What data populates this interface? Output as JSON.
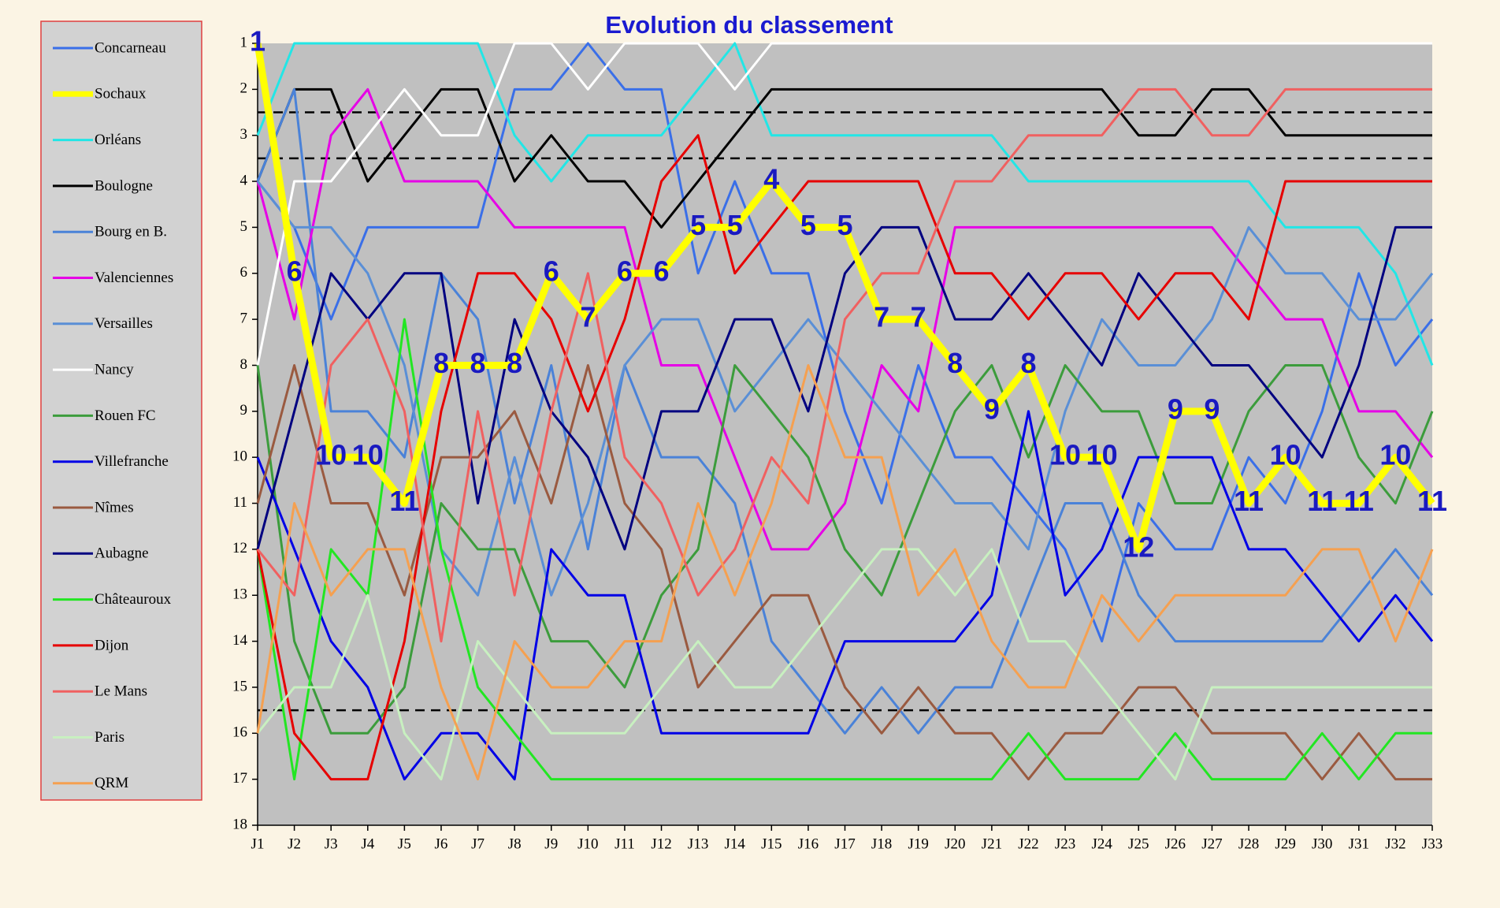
{
  "chart_data": {
    "type": "line",
    "title": "Evolution du classement",
    "categories": [
      "J1",
      "J2",
      "J3",
      "J4",
      "J5",
      "J6",
      "J7",
      "J8",
      "J9",
      "J10",
      "J11",
      "J12",
      "J13",
      "J14",
      "J15",
      "J16",
      "J17",
      "J18",
      "J19",
      "J20",
      "J21",
      "J22",
      "J23",
      "J24",
      "J25",
      "J26",
      "J27",
      "J28",
      "J29",
      "J30",
      "J31",
      "J32",
      "J33"
    ],
    "ylim": [
      1,
      18
    ],
    "y_inverted": true,
    "yticks": [
      1,
      2,
      3,
      4,
      5,
      6,
      7,
      8,
      9,
      10,
      11,
      12,
      13,
      14,
      15,
      16,
      17,
      18
    ],
    "reference_lines": [
      2.5,
      3.5,
      15.5
    ],
    "highlight_series": 1,
    "series": [
      {
        "name": "Concarneau",
        "color": "#3a6fe8",
        "values": [
          4,
          5,
          7,
          5,
          5,
          5,
          5,
          2,
          2,
          1,
          2,
          2,
          6,
          4,
          6,
          6,
          9,
          11,
          8,
          10,
          10,
          11,
          12,
          14,
          11,
          12,
          12,
          10,
          11,
          9,
          6,
          8,
          7
        ]
      },
      {
        "name": "Sochaux",
        "color": "#ffff00",
        "values": [
          1,
          6,
          10,
          10,
          11,
          8,
          8,
          8,
          6,
          7,
          6,
          6,
          5,
          5,
          4,
          5,
          5,
          7,
          7,
          8,
          9,
          8,
          10,
          10,
          12,
          9,
          9,
          11,
          10,
          11,
          11,
          10,
          11
        ]
      },
      {
        "name": "Orléans",
        "color": "#22e6e6",
        "values": [
          3,
          1,
          1,
          1,
          1,
          1,
          1,
          3,
          4,
          3,
          3,
          3,
          2,
          1,
          3,
          3,
          3,
          3,
          3,
          3,
          3,
          4,
          4,
          4,
          4,
          4,
          4,
          4,
          5,
          5,
          5,
          6,
          8
        ]
      },
      {
        "name": "Boulogne",
        "color": "#000000",
        "values": [
          4,
          2,
          2,
          4,
          3,
          2,
          2,
          4,
          3,
          4,
          4,
          5,
          4,
          3,
          2,
          2,
          2,
          2,
          2,
          2,
          2,
          2,
          2,
          2,
          3,
          3,
          2,
          2,
          3,
          3,
          3,
          3,
          3
        ]
      },
      {
        "name": "Bourg en B.",
        "color": "#4a82d8",
        "values": [
          4,
          2,
          9,
          9,
          10,
          6,
          7,
          11,
          8,
          12,
          8,
          10,
          10,
          11,
          14,
          15,
          16,
          15,
          16,
          15,
          15,
          13,
          11,
          11,
          13,
          14,
          14,
          14,
          14,
          14,
          13,
          12,
          13
        ]
      },
      {
        "name": "Valenciennes",
        "color": "#e600e6",
        "values": [
          4,
          7,
          3,
          2,
          4,
          4,
          4,
          5,
          5,
          5,
          5,
          8,
          8,
          10,
          12,
          12,
          11,
          8,
          9,
          5,
          5,
          5,
          5,
          5,
          5,
          5,
          5,
          6,
          7,
          7,
          9,
          9,
          10
        ]
      },
      {
        "name": "Versailles",
        "color": "#5a8fd6",
        "values": [
          4,
          5,
          5,
          6,
          8,
          12,
          13,
          10,
          13,
          11,
          8,
          7,
          7,
          9,
          8,
          7,
          8,
          9,
          10,
          11,
          11,
          12,
          9,
          7,
          8,
          8,
          7,
          5,
          6,
          6,
          7,
          7,
          6
        ]
      },
      {
        "name": "Nancy",
        "color": "#ffffff",
        "values": [
          8,
          4,
          4,
          3,
          2,
          3,
          3,
          1,
          1,
          2,
          1,
          1,
          1,
          2,
          1,
          1,
          1,
          1,
          1,
          1,
          1,
          1,
          1,
          1,
          1,
          1,
          1,
          1,
          1,
          1,
          1,
          1,
          1
        ]
      },
      {
        "name": "Rouen FC",
        "color": "#3c9c3c",
        "values": [
          8,
          14,
          16,
          16,
          15,
          11,
          12,
          12,
          14,
          14,
          15,
          13,
          12,
          8,
          9,
          10,
          12,
          13,
          11,
          9,
          8,
          10,
          8,
          9,
          9,
          11,
          11,
          9,
          8,
          8,
          10,
          11,
          9
        ]
      },
      {
        "name": "Villefranche",
        "color": "#0000e6",
        "values": [
          10,
          12,
          14,
          15,
          17,
          16,
          16,
          17,
          12,
          13,
          13,
          16,
          16,
          16,
          16,
          16,
          14,
          14,
          14,
          14,
          13,
          9,
          13,
          12,
          10,
          10,
          10,
          12,
          12,
          13,
          14,
          13,
          14
        ]
      },
      {
        "name": "Nîmes",
        "color": "#9a5a40",
        "values": [
          11,
          8,
          11,
          11,
          13,
          10,
          10,
          9,
          11,
          8,
          11,
          12,
          15,
          14,
          13,
          13,
          15,
          16,
          15,
          16,
          16,
          17,
          16,
          16,
          15,
          15,
          16,
          16,
          16,
          17,
          16,
          17,
          17
        ]
      },
      {
        "name": "Aubagne",
        "color": "#000080",
        "values": [
          12,
          9,
          6,
          7,
          6,
          6,
          11,
          7,
          9,
          10,
          12,
          9,
          9,
          7,
          7,
          9,
          6,
          5,
          5,
          7,
          7,
          6,
          7,
          8,
          6,
          7,
          8,
          8,
          9,
          10,
          8,
          5,
          5
        ]
      },
      {
        "name": "Châteauroux",
        "color": "#22e622",
        "values": [
          12,
          17,
          12,
          13,
          7,
          12,
          15,
          16,
          17,
          17,
          17,
          17,
          17,
          17,
          17,
          17,
          17,
          17,
          17,
          17,
          17,
          16,
          17,
          17,
          17,
          16,
          17,
          17,
          17,
          16,
          17,
          16,
          16
        ]
      },
      {
        "name": "Dijon",
        "color": "#e60000",
        "values": [
          12,
          16,
          17,
          17,
          14,
          9,
          6,
          6,
          7,
          9,
          7,
          4,
          3,
          6,
          5,
          4,
          4,
          4,
          4,
          6,
          6,
          7,
          6,
          6,
          7,
          6,
          6,
          7,
          4,
          4,
          4,
          4,
          4
        ]
      },
      {
        "name": "Le Mans",
        "color": "#f06060",
        "values": [
          12,
          13,
          8,
          7,
          9,
          14,
          9,
          13,
          9,
          6,
          10,
          11,
          13,
          12,
          10,
          11,
          7,
          6,
          6,
          4,
          4,
          3,
          3,
          3,
          2,
          2,
          3,
          3,
          2,
          2,
          2,
          2,
          2
        ]
      },
      {
        "name": "Paris",
        "color": "#c8f0c0",
        "values": [
          16,
          15,
          15,
          13,
          16,
          17,
          14,
          15,
          16,
          16,
          16,
          15,
          14,
          15,
          15,
          14,
          13,
          12,
          12,
          13,
          12,
          14,
          14,
          15,
          16,
          17,
          15,
          15,
          15,
          15,
          15,
          15,
          15
        ]
      },
      {
        "name": "QRM",
        "color": "#f5a050",
        "values": [
          16,
          11,
          13,
          12,
          12,
          15,
          17,
          14,
          15,
          15,
          14,
          14,
          11,
          13,
          11,
          8,
          10,
          10,
          13,
          12,
          14,
          15,
          15,
          13,
          14,
          13,
          13,
          13,
          13,
          12,
          12,
          14,
          12
        ]
      }
    ]
  }
}
